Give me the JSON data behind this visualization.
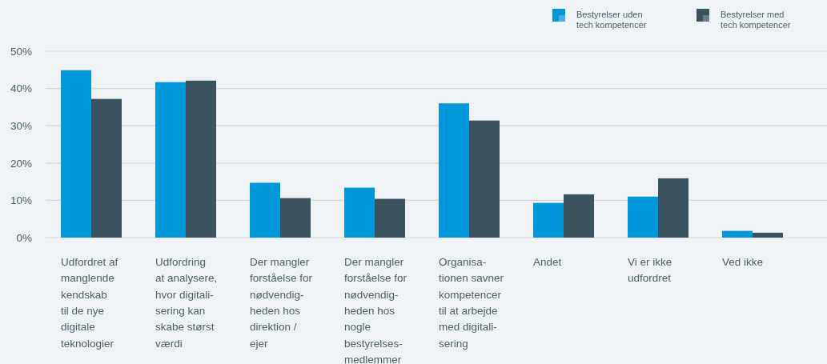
{
  "chart_data": {
    "type": "bar",
    "categories": [
      "Udfordret af\nmanglende\nkendskab\ntil de nye\ndigitale\nteknologier",
      "Udfordring\nat analysere,\nhvor digitali-\nsering kan\nskabe størst\nværdi",
      "Der mangler\nforståelse for\nnødvendig-\nheden hos\ndirektion /\nejer",
      "Der mangler\nforståelse for\nnødvendig-\nheden hos\nnogle\nbestyrelses-\nmedlemmer",
      "Organisa-\ntionen savner\nkompetencer\ntil at arbejde\nmed digitali-\nsering",
      "Andet",
      "Vi er ikke\nudfordret",
      "Ved ikke"
    ],
    "series": [
      {
        "name": "Bestyrelser uden\ntech kompetencer",
        "color": "#0098da",
        "values": [
          44.9,
          41.7,
          14.7,
          13.4,
          36.0,
          9.3,
          11.0,
          1.8
        ]
      },
      {
        "name": "Bestyrelser med\ntech kompetencer",
        "color": "#3a525d",
        "values": [
          37.2,
          42.1,
          10.6,
          10.4,
          31.4,
          11.6,
          15.9,
          1.3
        ]
      }
    ],
    "ylim": [
      0,
      50
    ],
    "yticks": [
      {
        "value": 0,
        "label": "0%"
      },
      {
        "value": 10,
        "label": "10%"
      },
      {
        "value": 20,
        "label": "20%"
      },
      {
        "value": 30,
        "label": "30%"
      },
      {
        "value": 40,
        "label": "40%"
      },
      {
        "value": 50,
        "label": "50%"
      }
    ],
    "grid": "y",
    "legend": "top right"
  }
}
